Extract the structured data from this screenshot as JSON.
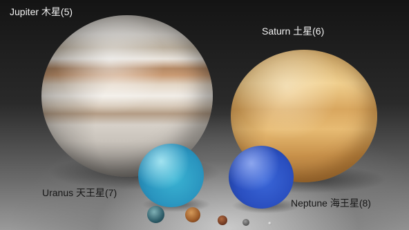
{
  "labels": {
    "jupiter": "Jupiter 木星(5)",
    "saturn": "Saturn 土星(6)",
    "uranus": "Uranus 天王星(7)",
    "neptune": "Neptune 海王星(8)"
  },
  "colors": {
    "jupiter_band": "#b58a66",
    "saturn": "#e7bb73",
    "uranus": "#2a95bf",
    "neptune": "#2a4fc0"
  }
}
